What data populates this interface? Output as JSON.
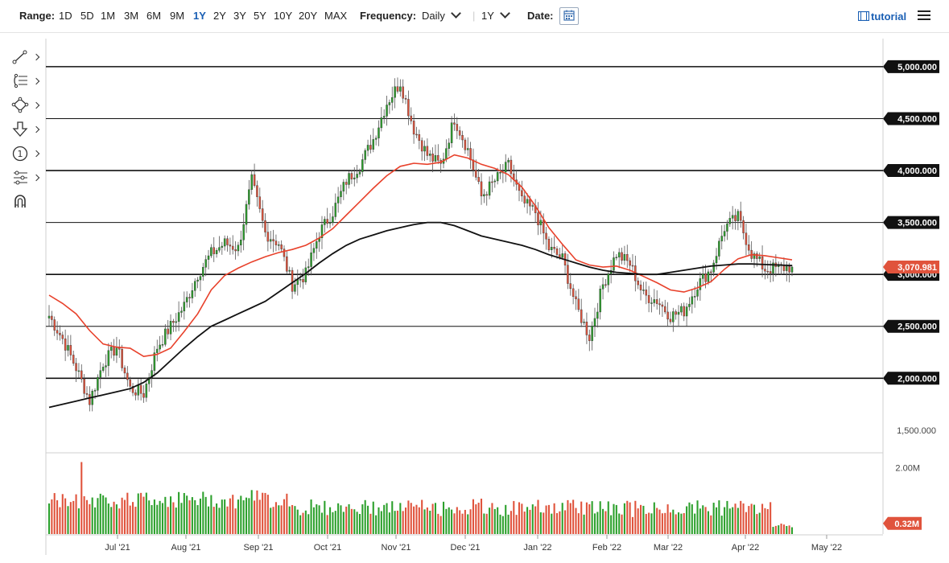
{
  "topbar": {
    "range_label": "Range:",
    "ranges": [
      "1D",
      "5D",
      "1M",
      "3M",
      "6M",
      "9M",
      "1Y",
      "2Y",
      "3Y",
      "5Y",
      "10Y",
      "20Y",
      "MAX"
    ],
    "active_range": "1Y",
    "frequency_label": "Frequency:",
    "frequency_value": "Daily",
    "period_value": "1Y",
    "date_label": "Date:",
    "tutorial_label": "tutorial"
  },
  "toolbar": {
    "tools": [
      "trendline-icon",
      "fib-retracement-icon",
      "pattern-icon",
      "arrow-down-icon",
      "annotation-number-icon",
      "indicator-settings-icon",
      "magnet-icon"
    ]
  },
  "colors": {
    "up": "#2ca02c",
    "down": "#e0533c",
    "ma_fast": "#e8412b",
    "ma_slow": "#111111",
    "price_tag": "#e0533c",
    "accent": "#1a5fb4"
  },
  "chart_data": {
    "type": "candlestick",
    "price_axis": {
      "ticks": [
        1500,
        2000,
        2500,
        3000,
        3500,
        4000,
        4500,
        5000
      ],
      "tick_labels": [
        "1,500.000",
        "2,000.000",
        "2,500.000",
        "3,000.000",
        "3,500.000",
        "4,000.000",
        "4,500.000",
        "5,000.000"
      ],
      "ylim": [
        1290,
        5270
      ],
      "horizontal_lines": [
        2000,
        2500,
        3000,
        3500,
        4000,
        4500,
        5000
      ]
    },
    "volume_axis": {
      "ticks": [
        0.32,
        2.0
      ],
      "tick_labels": [
        "0.32M",
        "2.00M"
      ],
      "ylim": [
        0,
        2.4
      ]
    },
    "time_axis": {
      "labels": [
        "Jul '21",
        "Aug '21",
        "Sep '21",
        "Oct '21",
        "Nov '21",
        "Dec '21",
        "Jan '22",
        "Feb '22",
        "Mar '22",
        "Apr '22",
        "May '22"
      ]
    },
    "last_price": 3070.981,
    "last_price_label": "3,070.981",
    "last_volume_label": "0.32M",
    "price_path_weekly": [
      2600,
      2380,
      2100,
      1780,
      2150,
      2300,
      1900,
      1850,
      2300,
      2500,
      2700,
      3000,
      3200,
      3300,
      3250,
      3900,
      3400,
      3300,
      2900,
      3000,
      3400,
      3600,
      3900,
      4050,
      4300,
      4650,
      4850,
      4400,
      4150,
      4050,
      4500,
      4200,
      3750,
      3900,
      4050,
      3700,
      3600,
      3250,
      3150,
      2700,
      2400,
      2900,
      3200,
      3100,
      2800,
      2750,
      2600,
      2650,
      2900,
      3050,
      3450,
      3550,
      3200,
      3050,
      3060,
      3071
    ],
    "ma_fast_path": [
      2800,
      2720,
      2620,
      2460,
      2330,
      2300,
      2290,
      2210,
      2230,
      2290,
      2450,
      2620,
      2850,
      2990,
      3060,
      3120,
      3170,
      3210,
      3240,
      3280,
      3350,
      3440,
      3570,
      3700,
      3830,
      3950,
      4040,
      4070,
      4060,
      4080,
      4150,
      4120,
      4060,
      4020,
      3960,
      3840,
      3660,
      3450,
      3290,
      3140,
      3090,
      3070,
      3080,
      3040,
      2980,
      2920,
      2850,
      2830,
      2870,
      2930,
      3050,
      3150,
      3190,
      3180,
      3160,
      3140
    ],
    "ma_slow_path": [
      1720,
      1750,
      1780,
      1810,
      1840,
      1870,
      1900,
      1960,
      2050,
      2170,
      2290,
      2400,
      2500,
      2560,
      2620,
      2680,
      2740,
      2830,
      2920,
      3010,
      3110,
      3200,
      3280,
      3340,
      3380,
      3420,
      3450,
      3480,
      3500,
      3500,
      3470,
      3420,
      3370,
      3340,
      3310,
      3280,
      3240,
      3190,
      3150,
      3110,
      3070,
      3040,
      3020,
      3010,
      3000,
      3000,
      3020,
      3040,
      3060,
      3080,
      3090,
      3100,
      3100,
      3095,
      3090,
      3085
    ]
  }
}
